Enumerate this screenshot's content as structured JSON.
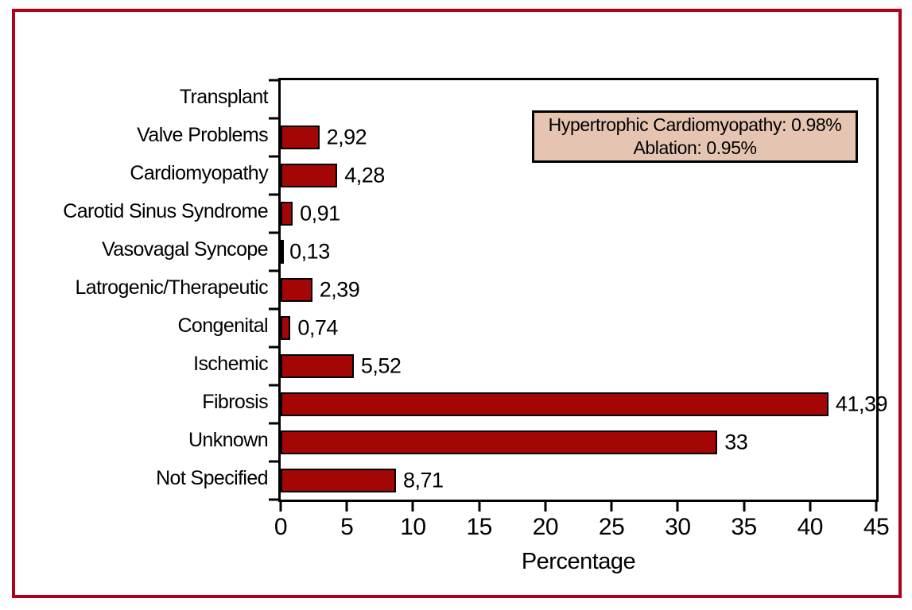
{
  "figure": {
    "frame_color": "#b10017",
    "background": "#ffffff"
  },
  "chart_data": {
    "type": "bar",
    "orientation": "horizontal",
    "title": "",
    "xlabel": "Percentage",
    "ylabel": "",
    "xlim": [
      0,
      45
    ],
    "x_ticks": [
      0,
      5,
      10,
      15,
      20,
      25,
      30,
      35,
      40,
      45
    ],
    "grid": false,
    "bar_color": "#a40505",
    "bar_border_color": "#000000",
    "categories": [
      "Transplant",
      "Valve Problems",
      "Cardiomyopathy",
      "Carotid Sinus Syndrome",
      "Vasovagal Syncope",
      "Latrogenic/Therapeutic",
      "Congenital",
      "Ischemic",
      "Fibrosis",
      "Unknown",
      "Not Specified"
    ],
    "values": [
      0,
      2.92,
      4.28,
      0.91,
      0.13,
      2.39,
      0.74,
      5.52,
      41.39,
      33,
      8.71
    ],
    "value_labels": [
      "",
      "2,92",
      "4,28",
      "0,91",
      "0,13",
      "2,39",
      "0,74",
      "5,52",
      "41,39",
      "33",
      "8,71"
    ],
    "annotation": {
      "lines": [
        "Hypertrophic Cardiomyopathy: 0.98%",
        "Ablation: 0.95%"
      ],
      "background": "#e6c4b2",
      "border_color": "#000000"
    }
  }
}
